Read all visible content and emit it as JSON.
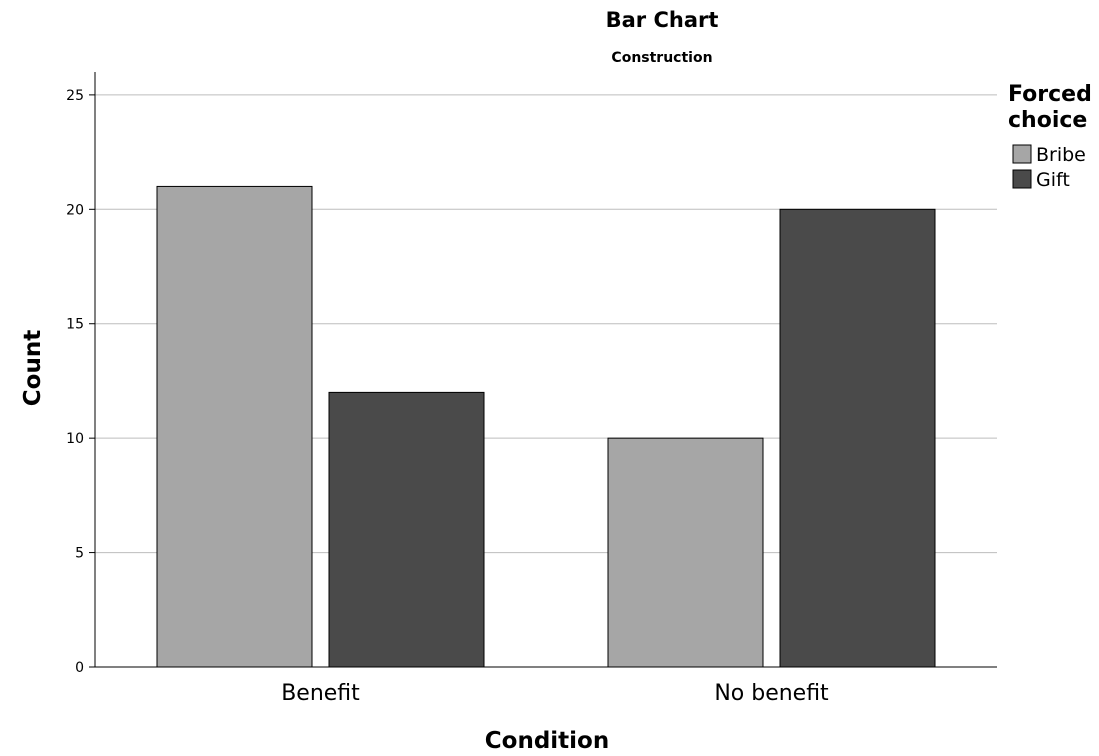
{
  "chart_data": {
    "type": "bar",
    "title": "Bar Chart",
    "subtitle": "Construction",
    "xlabel": "Condition",
    "ylabel": "Count",
    "categories": [
      "Benefit",
      "No benefit"
    ],
    "series": [
      {
        "name": "Bribe",
        "values": [
          21,
          10
        ],
        "color": "#a6a6a6"
      },
      {
        "name": "Gift",
        "values": [
          12,
          20
        ],
        "color": "#4a4a4a"
      }
    ],
    "ylim": [
      0,
      26
    ],
    "yticks": [
      0,
      5,
      10,
      15,
      20,
      25
    ],
    "grid": true,
    "legend": {
      "title_lines": [
        "Forced",
        "choice"
      ],
      "placement": "top-right"
    }
  }
}
